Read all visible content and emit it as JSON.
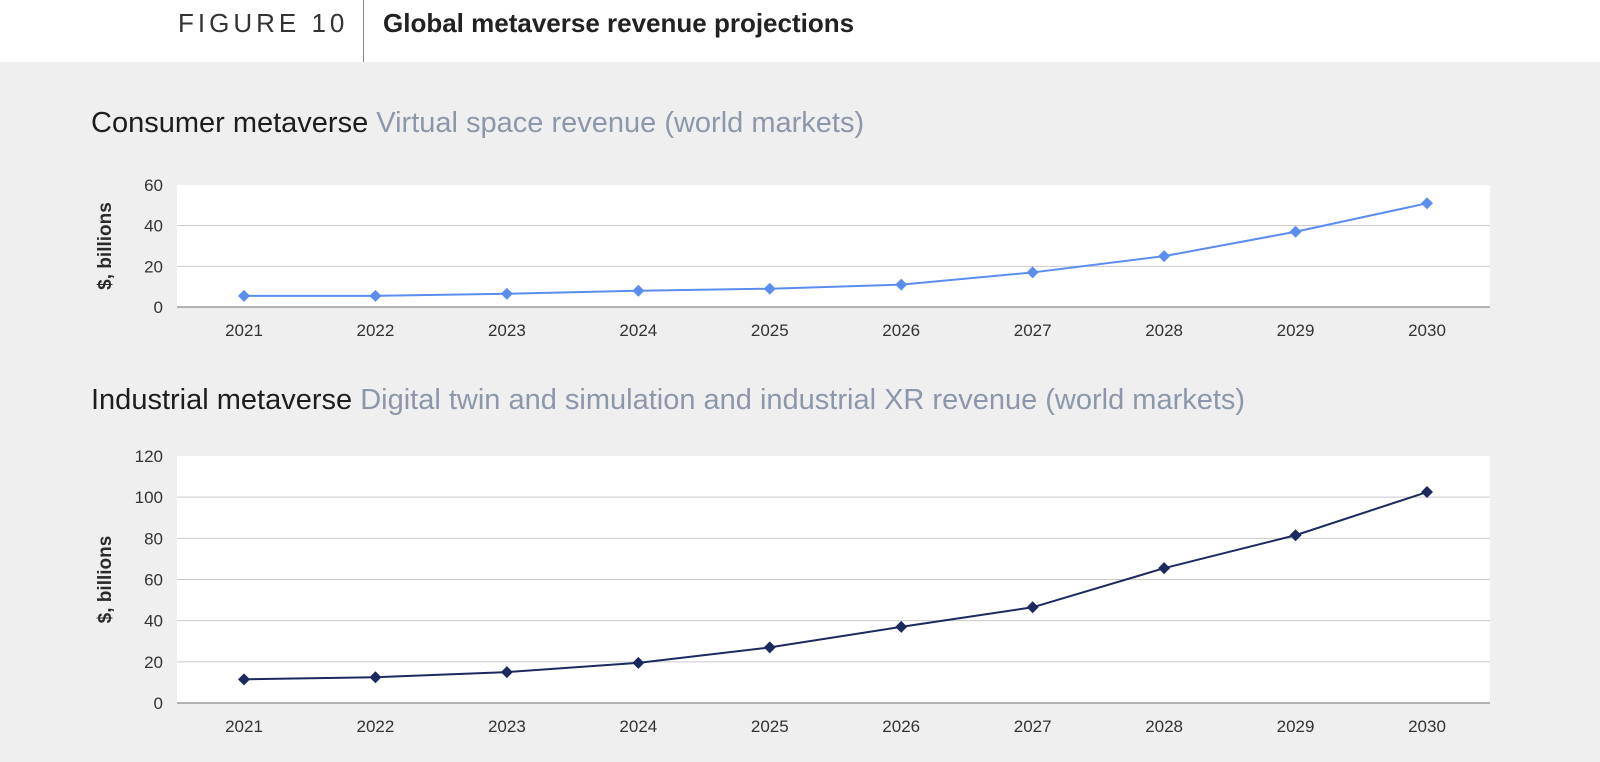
{
  "header": {
    "figure_label": "FIGURE 10",
    "title": "Global metaverse revenue projections"
  },
  "charts": [
    {
      "title_main": "Consumer metaverse",
      "title_sub": "Virtual space revenue (world markets)"
    },
    {
      "title_main": "Industrial metaverse",
      "title_sub": "Digital twin and simulation and industrial XR revenue (world markets)"
    }
  ],
  "chart_data": [
    {
      "type": "line",
      "title": "Consumer metaverse Virtual space revenue (world markets)",
      "xlabel": "",
      "ylabel": "$, billions",
      "categories": [
        "2021",
        "2022",
        "2023",
        "2024",
        "2025",
        "2026",
        "2027",
        "2028",
        "2029",
        "2030"
      ],
      "yticks": [
        0,
        20,
        40,
        60
      ],
      "ylim": [
        0,
        60
      ],
      "grid": true,
      "color": "#5b8def",
      "series": [
        {
          "values": [
            5.5,
            5.5,
            6.5,
            8,
            9,
            11,
            17,
            25,
            37,
            51
          ]
        }
      ]
    },
    {
      "type": "line",
      "title": "Industrial metaverse Digital twin and simulation and industrial XR revenue (world markets)",
      "xlabel": "",
      "ylabel": "$, billions",
      "categories": [
        "2021",
        "2022",
        "2023",
        "2024",
        "2025",
        "2026",
        "2027",
        "2028",
        "2029",
        "2030"
      ],
      "yticks": [
        0,
        20,
        40,
        60,
        80,
        100,
        120
      ],
      "ylim": [
        0,
        120
      ],
      "grid": true,
      "color": "#1b2a5e",
      "series": [
        {
          "values": [
            11.5,
            12.5,
            15,
            19.5,
            27,
            37,
            46.5,
            65.5,
            81.5,
            102.5
          ]
        }
      ]
    }
  ]
}
